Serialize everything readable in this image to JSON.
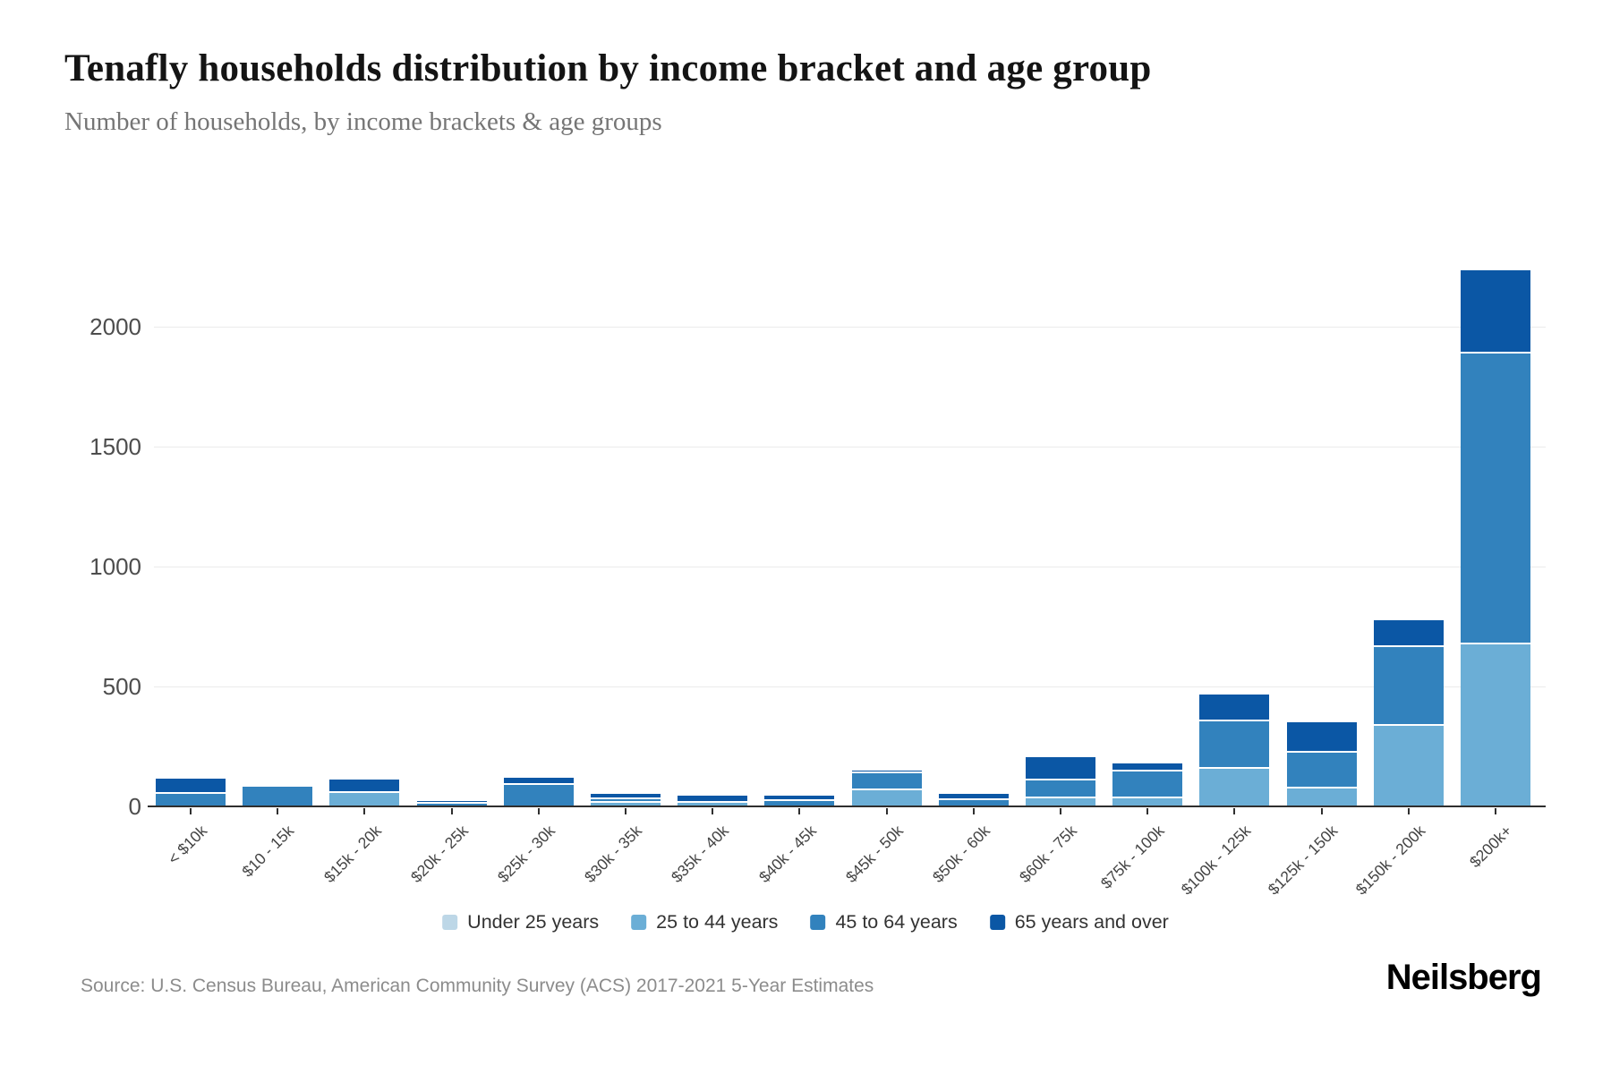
{
  "header": {
    "title": "Tenafly households distribution by income bracket and age group",
    "subtitle": "Number of households, by income brackets & age groups"
  },
  "chart_data": {
    "type": "bar",
    "stacked": true,
    "title": "Tenafly households distribution by income bracket and age group",
    "xlabel": "",
    "ylabel": "",
    "ylim": [
      0,
      2300
    ],
    "yticks": [
      0,
      500,
      1000,
      1500,
      2000
    ],
    "grid": true,
    "legend_position": "bottom",
    "categories": [
      "< $10k",
      "$10 - 15k",
      "$15k - 20k",
      "$20k - 25k",
      "$25k - 30k",
      "$30k - 35k",
      "$35k - 40k",
      "$40k - 45k",
      "$45k - 50k",
      "$50k - 60k",
      "$60k - 75k",
      "$75k - 100k",
      "$100k - 125k",
      "$125k - 150k",
      "$150k - 200k",
      "$200k+"
    ],
    "series": [
      {
        "name": "Under 25 years",
        "color": "#bdd7e7",
        "values": [
          0,
          0,
          0,
          0,
          0,
          0,
          0,
          0,
          0,
          0,
          0,
          0,
          0,
          0,
          0,
          0
        ]
      },
      {
        "name": "25 to 44 years",
        "color": "#6baed6",
        "values": [
          0,
          0,
          56,
          0,
          0,
          15,
          15,
          0,
          67,
          0,
          34,
          34,
          157,
          75,
          335,
          675
        ]
      },
      {
        "name": "45 to 64 years",
        "color": "#3282bd",
        "values": [
          52,
          82,
          0,
          12,
          90,
          15,
          0,
          22,
          71,
          26,
          75,
          112,
          198,
          150,
          330,
          1213
        ]
      },
      {
        "name": "65 years and over",
        "color": "#0b57a5",
        "values": [
          63,
          8,
          56,
          10,
          29,
          22,
          30,
          22,
          11,
          26,
          97,
          34,
          112,
          125,
          110,
          347
        ]
      }
    ]
  },
  "footer": {
    "source": "Source: U.S. Census Bureau, American Community Survey (ACS) 2017-2021 5-Year Estimates",
    "brand": "Neilsberg"
  }
}
